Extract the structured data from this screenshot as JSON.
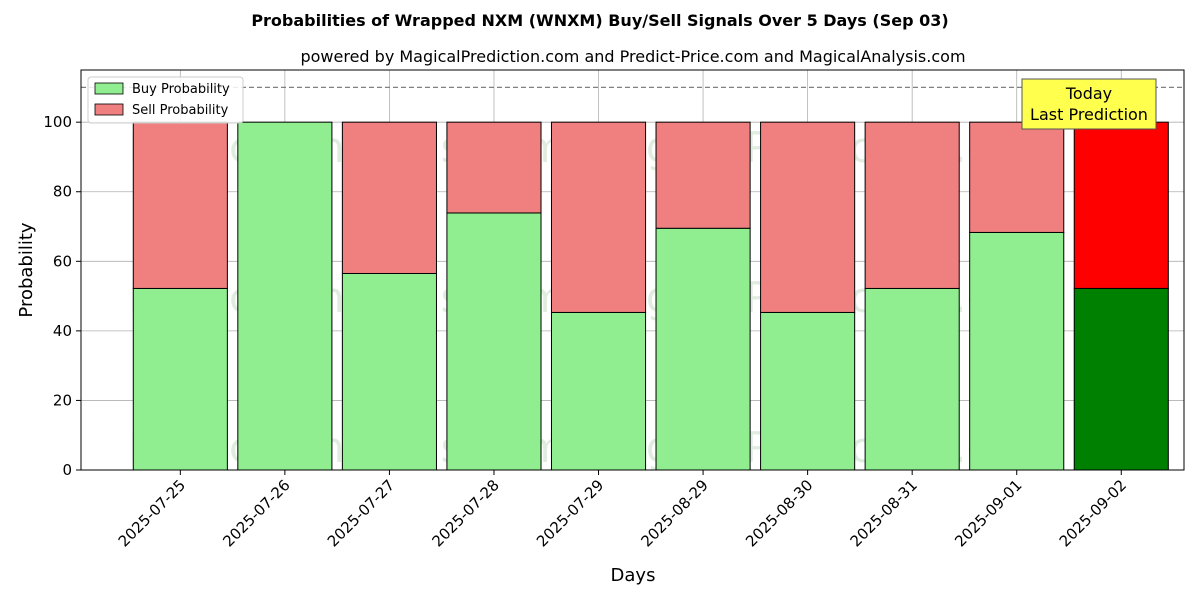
{
  "chart_data": {
    "type": "bar",
    "stacked": true,
    "title": "Probabilities of Wrapped NXM (WNXM) Buy/Sell Signals Over 5 Days (Sep 03)",
    "subtitle": "powered by MagicalPrediction.com and Predict-Price.com and MagicalAnalysis.com",
    "xlabel": "Days",
    "ylabel": "Probability",
    "ylim": [
      0,
      115
    ],
    "yticks": [
      0,
      20,
      40,
      60,
      80,
      100
    ],
    "grid": true,
    "legend_position": "top-left",
    "categories": [
      "2025-07-25",
      "2025-07-26",
      "2025-07-27",
      "2025-07-28",
      "2025-07-29",
      "2025-08-29",
      "2025-08-30",
      "2025-08-31",
      "2025-09-01",
      "2025-09-02"
    ],
    "series": [
      {
        "name": "Buy Probability",
        "values": [
          52.2,
          100,
          56.5,
          73.9,
          45.3,
          69.5,
          45.3,
          52.2,
          68.3,
          52.2
        ],
        "color": "#90ee90",
        "highlight_color": "#008000"
      },
      {
        "name": "Sell Probability",
        "values": [
          47.8,
          0,
          43.5,
          26.1,
          54.7,
          30.5,
          54.7,
          47.8,
          31.7,
          47.8
        ],
        "color": "#f08080",
        "highlight_color": "#ff0000"
      }
    ],
    "reference_line": {
      "y": 110,
      "style": "dashed",
      "color": "#808080"
    },
    "annotation": {
      "lines": [
        "Today",
        "Last Prediction"
      ],
      "category": "2025-09-02",
      "background": "#ffff4d"
    },
    "watermarks": [
      "MagicalAnalysis.com",
      "MagicalPrediction.com"
    ]
  }
}
